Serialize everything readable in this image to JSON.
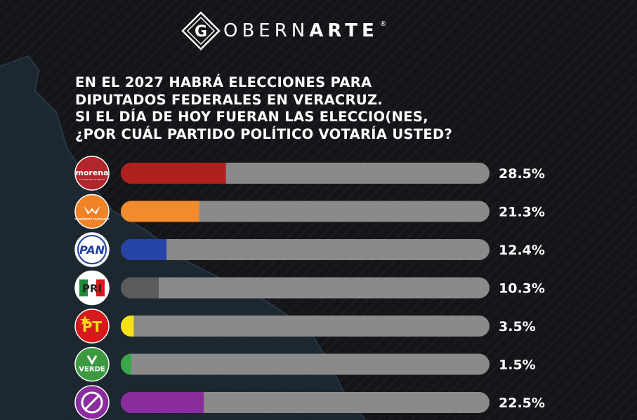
{
  "brand": {
    "mark": "G",
    "name_light": "OBERN",
    "name_bold": "ARTE",
    "reg": "®"
  },
  "question": {
    "lines": [
      "EN EL 2027 HABRÁ ELECCIONES PARA",
      "DIPUTADOS FEDERALES EN VERACRUZ.",
      "SI EL DÍA DE HOY FUERAN LAS ELECCIO(NES,",
      "¿POR CUÁL PARTIDO POLÍTICO VOTARÍA USTED?"
    ]
  },
  "chart_data": {
    "type": "bar",
    "orientation": "horizontal",
    "xlim": [
      0,
      100
    ],
    "track_color": "#8a8a8a",
    "bars": [
      {
        "party": "morena",
        "logo_text": "morena",
        "logo_sub": "La esperanza de México",
        "value": 28.5,
        "label": "28.5%",
        "color": "#b0201c",
        "logo_bg": "#b1262b",
        "logo_fg": "#ffffff"
      },
      {
        "party": "movimiento-ciudadano",
        "logo_text": "MOVIMIENTO CIUDADANO",
        "value": 21.3,
        "label": "21.3%",
        "color": "#f28a2e",
        "logo_bg": "#f08328",
        "logo_fg": "#ffffff"
      },
      {
        "party": "pan",
        "logo_text": "PAN",
        "value": 12.4,
        "label": "12.4%",
        "color": "#2544a6",
        "logo_bg": "#ffffff",
        "logo_fg": "#1f3f9e"
      },
      {
        "party": "pri",
        "logo_text": "PRI",
        "value": 10.3,
        "label": "10.3%",
        "color": "#5b5b5b",
        "logo_bg": "#ffffff",
        "logo_fg": "#222222"
      },
      {
        "party": "pt",
        "logo_text": "PT",
        "value": 3.5,
        "label": "3.5%",
        "color": "#f5e118",
        "logo_bg": "#d6191c",
        "logo_fg": "#f7d917"
      },
      {
        "party": "verde",
        "logo_text": "VERDE",
        "value": 1.5,
        "label": "1.5%",
        "color": "#3aa64a",
        "logo_bg": "#3b9a40",
        "logo_fg": "#ffffff"
      },
      {
        "party": "ninguno",
        "logo_text": "",
        "value": 22.5,
        "label": "22.5%",
        "color": "#8a2c9e",
        "logo_bg": "#8b2d9f",
        "logo_fg": "#ffffff"
      }
    ]
  }
}
